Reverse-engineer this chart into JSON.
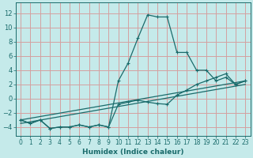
{
  "xlabel": "Humidex (Indice chaleur)",
  "bg_color": "#c5eaea",
  "grid_color": "#d4a0a0",
  "line_color": "#1a6b6b",
  "xlim": [
    -0.5,
    23.5
  ],
  "ylim": [
    -5.2,
    13.5
  ],
  "yticks": [
    -4,
    -2,
    0,
    2,
    4,
    6,
    8,
    10,
    12
  ],
  "xticks": [
    0,
    1,
    2,
    3,
    4,
    5,
    6,
    7,
    8,
    9,
    10,
    11,
    12,
    13,
    14,
    15,
    16,
    17,
    18,
    19,
    20,
    21,
    22,
    23
  ],
  "series": {
    "curve1_x": [
      0,
      1,
      2,
      3,
      4,
      5,
      6,
      7,
      8,
      9,
      10,
      11,
      12,
      13,
      14,
      15,
      16,
      17,
      18,
      19,
      20,
      21,
      22,
      23
    ],
    "curve1_y": [
      -3.0,
      -3.5,
      -3.0,
      -4.2,
      -4.0,
      -4.0,
      -3.7,
      -4.0,
      -3.7,
      -4.0,
      2.5,
      5.0,
      8.5,
      11.8,
      11.5,
      11.5,
      6.5,
      6.5,
      4.0,
      4.0,
      2.5,
      3.0,
      2.0,
      2.5
    ],
    "curve2_x": [
      0,
      1,
      2,
      3,
      4,
      5,
      6,
      7,
      8,
      9,
      10,
      11,
      12,
      13,
      14,
      15,
      16,
      17,
      18,
      19,
      20,
      21,
      22,
      23
    ],
    "curve2_y": [
      -3.0,
      -3.5,
      -3.0,
      -4.2,
      -4.0,
      -4.0,
      -3.7,
      -4.0,
      -3.7,
      -4.0,
      -0.8,
      -0.5,
      -0.2,
      -0.5,
      -0.7,
      -0.8,
      0.5,
      1.2,
      2.0,
      2.5,
      3.0,
      3.5,
      2.0,
      2.5
    ],
    "line1_x": [
      0,
      23
    ],
    "line1_y": [
      -3.0,
      2.5
    ],
    "line2_x": [
      0,
      23
    ],
    "line2_y": [
      -3.5,
      2.0
    ]
  }
}
